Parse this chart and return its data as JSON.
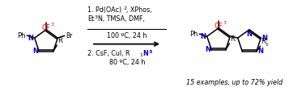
{
  "bg_color": "#ffffff",
  "bond_color": "#000000",
  "n_color": "#0000cc",
  "cf3_color": "#ff0000",
  "text_color": "#000000",
  "figsize": [
    3.78,
    1.08
  ],
  "dpi": 100,
  "line1": "1. Pd(OAc)",
  "line1_sub": "2",
  "line1_end": ", XPhos,",
  "line2_start": "Et",
  "line2_sub": "3",
  "line2_end": "N, TMSA, DMF,",
  "line3": "100 ºC, 24 h",
  "line4_start": "2. CsF, CuI, R",
  "line4_sup": "1",
  "line4_N": "N",
  "line4_sub3": "3",
  "line5": "80 ºC, 24 h",
  "footer": "15 examples, up to 72% yield"
}
